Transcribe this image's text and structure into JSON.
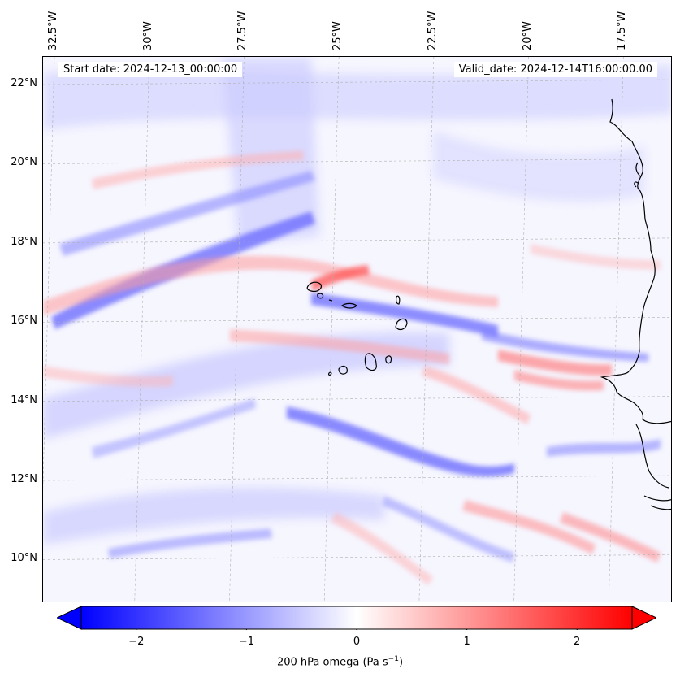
{
  "map": {
    "start_date_text": "Start date: 2024-12-13_00:00:00",
    "valid_date_text": "Valid_date: 2024-12-14T16:00:00.00",
    "longitude_labels": [
      "32.5°W",
      "30°W",
      "27.5°W",
      "25°W",
      "22.5°W",
      "20°W",
      "17.5°W"
    ],
    "latitude_labels": [
      "22°N",
      "20°N",
      "18°N",
      "16°N",
      "14°N",
      "12°N",
      "10°N"
    ],
    "extent": {
      "lon_min": -32.8,
      "lon_max": -16.2,
      "lat_min": 8.9,
      "lat_max": 22.7
    },
    "field": "200 hPa omega",
    "colors": {
      "negative": "#0000ff",
      "neutral": "#ffffff",
      "positive": "#ff0000",
      "coastline": "#000000",
      "grid": "#b0b0b0"
    }
  },
  "colorbar": {
    "label_prefix": "200 hPa omega (Pa s",
    "label_exponent": "−1",
    "label_suffix": ")",
    "tick_labels": [
      "−2",
      "−1",
      "0",
      "1",
      "2"
    ],
    "tick_values": [
      -2,
      -1,
      0,
      1,
      2
    ],
    "range": [
      -2.5,
      2.5
    ],
    "extend": "both"
  }
}
